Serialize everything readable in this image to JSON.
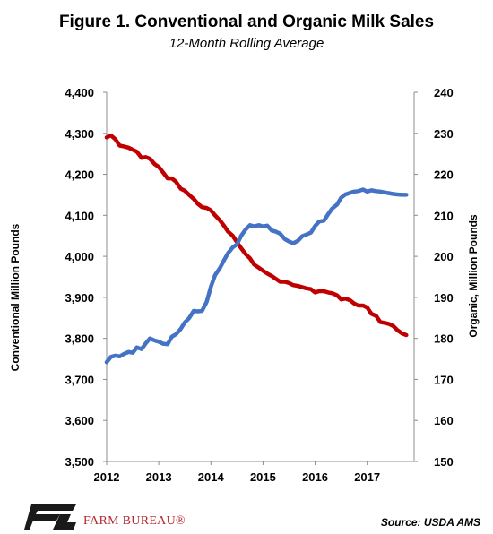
{
  "title": "Figure 1. Conventional and Organic Milk Sales",
  "subtitle": "12-Month Rolling Average",
  "footer": {
    "brand": "FARM BUREAU®",
    "source": "Source: USDA AMS"
  },
  "chart_data": {
    "type": "line",
    "title": "Figure 1. Conventional and Organic Milk Sales",
    "subtitle": "12-Month Rolling Average",
    "xlabel": "",
    "ylabel_left": "Conventional Million Pounds",
    "ylabel_right": "Organic, Million Pounds",
    "xlim": [
      2012,
      2017.9
    ],
    "ylim_left": [
      3500,
      4400
    ],
    "ylim_right": [
      150,
      240
    ],
    "x_ticks": [
      "2012",
      "2013",
      "2014",
      "2015",
      "2016",
      "2017"
    ],
    "y_left_ticks": [
      "3,500",
      "3,600",
      "3,700",
      "3,800",
      "3,900",
      "4,000",
      "4,100",
      "4,200",
      "4,300",
      "4,400"
    ],
    "y_right_ticks": [
      "150",
      "160",
      "170",
      "180",
      "190",
      "200",
      "210",
      "220",
      "230",
      "240"
    ],
    "grid": false,
    "legend": "none",
    "series": [
      {
        "axis": "left",
        "color": "#c00000",
        "x": [
          2012.0,
          2012.08,
          2012.17,
          2012.25,
          2012.33,
          2012.42,
          2012.5,
          2012.58,
          2012.67,
          2012.75,
          2012.83,
          2012.92,
          2013.0,
          2013.08,
          2013.17,
          2013.25,
          2013.33,
          2013.42,
          2013.5,
          2013.58,
          2013.67,
          2013.75,
          2013.83,
          2013.92,
          2014.0,
          2014.08,
          2014.17,
          2014.25,
          2014.33,
          2014.42,
          2014.5,
          2014.58,
          2014.67,
          2014.75,
          2014.83,
          2014.92,
          2015.0,
          2015.08,
          2015.17,
          2015.25,
          2015.33,
          2015.42,
          2015.5,
          2015.58,
          2015.67,
          2015.75,
          2015.83,
          2015.92,
          2016.0,
          2016.08,
          2016.17,
          2016.25,
          2016.33,
          2016.42,
          2016.5,
          2016.58,
          2016.67,
          2016.75,
          2016.83,
          2016.92,
          2017.0,
          2017.08,
          2017.17,
          2017.25,
          2017.33,
          2017.42,
          2017.5,
          2017.58,
          2017.67,
          2017.75
        ],
        "values": [
          4290,
          4295,
          4285,
          4270,
          4268,
          4265,
          4260,
          4255,
          4240,
          4242,
          4238,
          4225,
          4218,
          4205,
          4190,
          4190,
          4182,
          4165,
          4160,
          4150,
          4140,
          4128,
          4120,
          4118,
          4112,
          4100,
          4088,
          4075,
          4060,
          4050,
          4035,
          4020,
          4005,
          3995,
          3980,
          3972,
          3965,
          3958,
          3952,
          3945,
          3938,
          3938,
          3935,
          3930,
          3928,
          3925,
          3922,
          3920,
          3912,
          3915,
          3915,
          3912,
          3910,
          3905,
          3895,
          3897,
          3893,
          3885,
          3880,
          3880,
          3875,
          3860,
          3855,
          3840,
          3838,
          3835,
          3830,
          3820,
          3812,
          3808
        ]
      },
      {
        "axis": "right",
        "color": "#4472c4",
        "x": [
          2012.0,
          2012.08,
          2012.17,
          2012.25,
          2012.33,
          2012.42,
          2012.5,
          2012.58,
          2012.67,
          2012.75,
          2012.83,
          2012.92,
          2013.0,
          2013.08,
          2013.17,
          2013.25,
          2013.33,
          2013.42,
          2013.5,
          2013.58,
          2013.67,
          2013.75,
          2013.83,
          2013.92,
          2014.0,
          2014.08,
          2014.17,
          2014.25,
          2014.33,
          2014.42,
          2014.5,
          2014.58,
          2014.67,
          2014.75,
          2014.83,
          2014.92,
          2015.0,
          2015.08,
          2015.17,
          2015.25,
          2015.33,
          2015.42,
          2015.5,
          2015.58,
          2015.67,
          2015.75,
          2015.83,
          2015.92,
          2016.0,
          2016.08,
          2016.17,
          2016.25,
          2016.33,
          2016.42,
          2016.5,
          2016.58,
          2016.67,
          2016.75,
          2016.83,
          2016.92,
          2017.0,
          2017.08,
          2017.17,
          2017.25,
          2017.33,
          2017.42,
          2017.5,
          2017.58,
          2017.67,
          2017.75
        ],
        "values": [
          174.2,
          175.5,
          175.8,
          175.6,
          176.2,
          176.7,
          176.5,
          177.8,
          177.4,
          178.8,
          180.0,
          179.5,
          179.2,
          178.7,
          178.6,
          180.4,
          181.0,
          182.3,
          183.9,
          184.9,
          186.7,
          186.6,
          186.7,
          188.9,
          192.6,
          195.4,
          197.1,
          199.0,
          200.8,
          202.2,
          202.9,
          205.0,
          206.6,
          207.6,
          207.3,
          207.6,
          207.3,
          207.5,
          206.3,
          206.0,
          205.5,
          204.2,
          203.6,
          203.2,
          203.8,
          204.9,
          205.3,
          205.8,
          207.4,
          208.5,
          208.7,
          210.3,
          211.7,
          212.6,
          214.3,
          215.1,
          215.5,
          215.8,
          215.9,
          216.3,
          215.8,
          216.1,
          215.9,
          215.8,
          215.6,
          215.4,
          215.2,
          215.1,
          215.0,
          215.0
        ]
      }
    ]
  }
}
